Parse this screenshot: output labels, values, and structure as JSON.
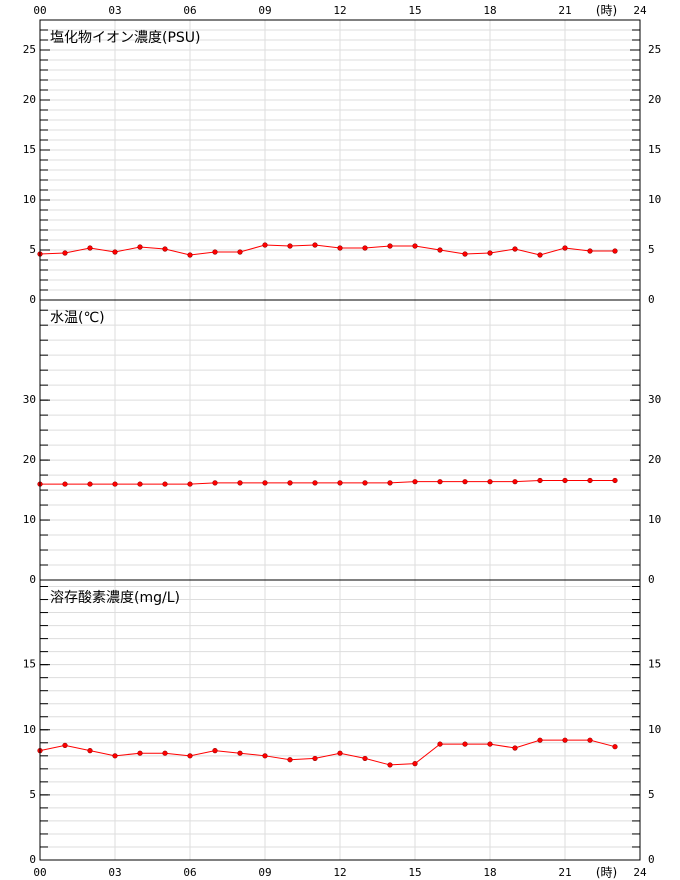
{
  "x_axis": {
    "xlim": [
      0,
      24
    ],
    "label": "(時)",
    "xticks": [
      {
        "value": 0,
        "label": "00"
      },
      {
        "value": 3,
        "label": "03"
      },
      {
        "value": 6,
        "label": "06"
      },
      {
        "value": 9,
        "label": "09"
      },
      12,
      15,
      18,
      21,
      24
    ]
  },
  "chart_data": [
    {
      "type": "line",
      "title": "塩化物イオン濃度(PSU)",
      "ylim": [
        0,
        28
      ],
      "yticks": [
        0,
        5,
        10,
        15,
        20,
        25
      ],
      "minor_ytick_step": 1,
      "grid": true,
      "x": [
        0,
        1,
        2,
        3,
        4,
        5,
        6,
        7,
        8,
        9,
        10,
        11,
        12,
        13,
        14,
        15,
        16,
        17,
        18,
        19,
        20,
        21,
        22,
        23
      ],
      "series": [
        {
          "color": "#ff0000",
          "values": [
            4.6,
            4.7,
            5.2,
            4.8,
            5.3,
            5.1,
            4.5,
            4.8,
            4.8,
            5.5,
            5.4,
            5.5,
            5.2,
            5.2,
            5.4,
            5.4,
            5.0,
            4.6,
            4.7,
            5.1,
            4.5,
            5.2,
            4.9,
            4.9
          ]
        }
      ]
    },
    {
      "type": "line",
      "title": "水温(℃)",
      "ylim": [
        0,
        46.7
      ],
      "yticks": [
        0,
        10,
        20,
        30
      ],
      "minor_ytick_step": 2.5,
      "grid": true,
      "x": [
        0,
        1,
        2,
        3,
        4,
        5,
        6,
        7,
        8,
        9,
        10,
        11,
        12,
        13,
        14,
        15,
        16,
        17,
        18,
        19,
        20,
        21,
        22,
        23
      ],
      "series": [
        {
          "color": "#ff0000",
          "values": [
            16.0,
            16.0,
            16.0,
            16.0,
            16.0,
            16.0,
            16.0,
            16.2,
            16.2,
            16.2,
            16.2,
            16.2,
            16.2,
            16.2,
            16.2,
            16.4,
            16.4,
            16.4,
            16.4,
            16.4,
            16.6,
            16.6,
            16.6,
            16.6
          ]
        }
      ]
    },
    {
      "type": "line",
      "title": "溶存酸素濃度(mg/L)",
      "ylim": [
        0,
        21.5
      ],
      "yticks": [
        0,
        5,
        10,
        15
      ],
      "minor_ytick_step": 1,
      "grid": true,
      "x": [
        0,
        1,
        2,
        3,
        4,
        5,
        6,
        7,
        8,
        9,
        10,
        11,
        12,
        13,
        14,
        15,
        16,
        17,
        18,
        19,
        20,
        21,
        22,
        23
      ],
      "series": [
        {
          "color": "#ff0000",
          "values": [
            8.4,
            8.8,
            8.4,
            8.0,
            8.2,
            8.2,
            8.0,
            8.4,
            8.2,
            8.0,
            7.7,
            7.8,
            8.2,
            7.8,
            7.3,
            7.4,
            8.9,
            8.9,
            8.9,
            8.6,
            9.2,
            9.2,
            9.2,
            8.7
          ]
        }
      ]
    }
  ]
}
